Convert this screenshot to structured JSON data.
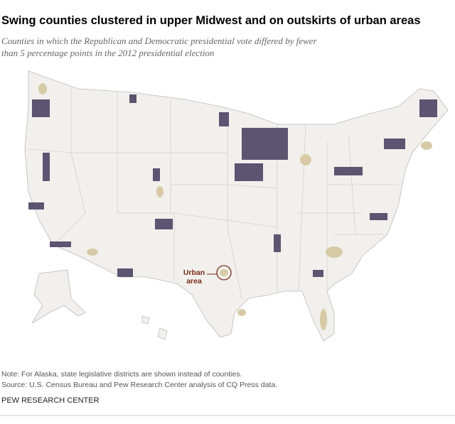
{
  "header": {
    "title": "Swing counties clustered in upper Midwest and on outskirts of urban areas",
    "subtitle": [
      "Counties in which the Republican and Democratic presidential vote differed by fewer",
      "than 5 percentage points in the 2012 presidential election"
    ]
  },
  "map": {
    "annotation": [
      "Urban",
      "area"
    ]
  },
  "footer": {
    "note": "Note: For Alaska, state legislative districts are shown instead of counties.",
    "source": "Source: U.S. Census Bureau and Pew Research Center analysis of CQ Press data.",
    "brand": "PEW RESEARCH CENTER"
  }
}
